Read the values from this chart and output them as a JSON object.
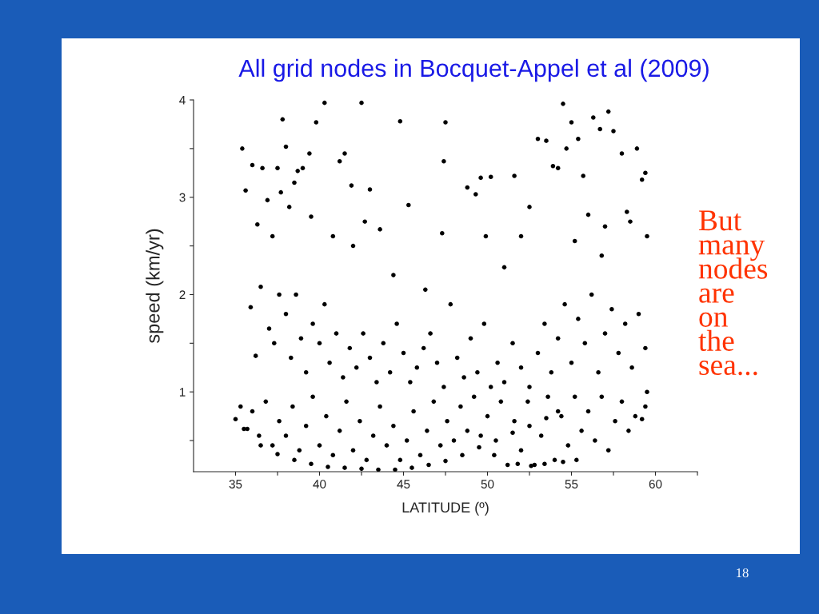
{
  "chart_data": {
    "type": "scatter",
    "title": "All grid nodes in Bocquet-Appel et al (2009)",
    "xlabel": "LATITUDE (º)",
    "ylabel": "speed (km/yr)",
    "annotations": [
      "But many nodes are on the sea...",
      "18"
    ],
    "xlim": [
      32.5,
      62.5
    ],
    "ylim": [
      0.18,
      4
    ],
    "xticks": [
      35,
      {
        "value": 37.5,
        "label": null
      },
      40,
      {
        "value": 42.5,
        "label": null
      },
      45,
      {
        "value": 47.5,
        "label": null
      },
      50,
      {
        "value": 52.5,
        "label": null
      },
      55,
      {
        "value": 57.5,
        "label": null
      },
      60,
      {
        "value": 62.5,
        "label": null
      }
    ],
    "yticks": [
      {
        "value": 0.5,
        "label": null
      },
      1,
      {
        "value": 1.5,
        "label": null
      },
      2,
      {
        "value": 2.5,
        "label": null
      },
      3,
      {
        "value": 3.5,
        "label": null
      },
      4
    ],
    "grid": false,
    "legend": false,
    "marker": "circle",
    "series": [
      {
        "color": "#000000",
        "x": [
          35.4,
          35.6,
          36.0,
          36.3,
          36.6,
          36.9,
          37.2,
          37.5,
          37.7,
          37.8,
          38.0,
          38.2,
          38.5,
          38.7,
          39.0,
          39.4,
          39.5,
          39.8,
          40.3,
          40.8,
          41.2,
          41.5,
          41.9,
          42.0,
          42.5,
          42.7,
          43.0,
          43.6,
          44.4,
          44.8,
          45.3,
          46.3,
          47.3,
          47.4,
          47.5,
          48.8,
          49.3,
          49.6,
          49.9,
          50.2,
          51.0,
          51.6,
          52.0,
          52.5,
          53.0,
          53.5,
          53.9,
          54.2,
          54.5,
          54.7,
          55.0,
          55.4,
          55.7,
          56.0,
          56.3,
          56.7,
          57.2,
          57.5,
          58.0,
          58.3,
          58.9,
          59.2,
          59.4,
          59.5,
          58.5,
          57.0,
          55.2,
          56.8,
          35.9,
          36.2,
          36.5,
          37.0,
          37.3,
          37.6,
          38.0,
          38.3,
          38.6,
          38.9,
          39.2,
          39.6,
          40.0,
          40.3,
          40.6,
          41.0,
          41.4,
          41.8,
          42.2,
          42.6,
          43.0,
          43.4,
          43.8,
          44.2,
          44.6,
          45.0,
          45.4,
          45.8,
          46.2,
          46.6,
          47.0,
          47.4,
          47.8,
          48.2,
          48.6,
          49.0,
          49.4,
          49.8,
          50.2,
          50.6,
          51.0,
          51.5,
          52.0,
          52.5,
          53.0,
          53.4,
          53.8,
          54.2,
          54.6,
          55.0,
          55.4,
          55.8,
          56.2,
          56.6,
          57.0,
          57.4,
          57.8,
          58.2,
          58.6,
          59.0,
          59.4,
          59.5,
          35.0,
          35.3,
          35.7,
          36.0,
          36.4,
          36.8,
          37.2,
          37.6,
          38.0,
          38.4,
          38.8,
          39.2,
          39.6,
          40.0,
          40.4,
          40.8,
          41.2,
          41.6,
          42.0,
          42.4,
          42.8,
          43.2,
          43.6,
          44.0,
          44.4,
          44.8,
          45.2,
          45.6,
          46.0,
          46.4,
          46.8,
          47.2,
          47.6,
          48.0,
          48.4,
          48.8,
          49.2,
          49.6,
          50.0,
          50.4,
          50.8,
          51.2,
          51.6,
          52.0,
          52.4,
          52.8,
          53.2,
          53.6,
          54.0,
          54.4,
          54.8,
          55.2,
          55.6,
          56.0,
          56.4,
          56.8,
          57.2,
          57.6,
          58.0,
          58.4,
          58.8,
          59.2,
          59.4,
          35.5,
          36.5,
          37.5,
          38.5,
          39.5,
          40.5,
          41.5,
          42.5,
          43.5,
          44.5,
          45.5,
          46.5,
          47.5,
          48.5,
          49.5,
          50.5,
          51.5,
          52.5,
          53.5,
          54.2,
          51.8,
          52.6,
          53.4,
          54.5,
          55.3
        ],
        "values": [
          3.5,
          3.07,
          3.33,
          2.72,
          3.3,
          2.97,
          2.6,
          3.3,
          3.05,
          3.8,
          3.52,
          2.9,
          3.15,
          3.27,
          3.3,
          3.45,
          2.8,
          3.77,
          3.97,
          2.6,
          3.37,
          3.45,
          3.12,
          2.5,
          3.97,
          2.75,
          3.08,
          2.67,
          2.2,
          3.78,
          2.92,
          2.05,
          2.63,
          3.37,
          3.77,
          3.1,
          3.03,
          3.2,
          2.6,
          3.21,
          2.28,
          3.22,
          2.6,
          2.9,
          3.6,
          3.58,
          3.32,
          3.3,
          3.96,
          3.5,
          3.77,
          3.6,
          3.22,
          2.82,
          3.82,
          3.7,
          3.88,
          3.68,
          3.45,
          2.85,
          3.5,
          3.18,
          3.25,
          2.6,
          2.75,
          2.7,
          2.55,
          2.4,
          1.87,
          1.37,
          2.08,
          1.65,
          1.5,
          2.0,
          1.8,
          1.35,
          2.0,
          1.55,
          1.2,
          1.7,
          1.5,
          1.9,
          1.3,
          1.6,
          1.15,
          1.45,
          1.25,
          1.6,
          1.35,
          1.1,
          1.5,
          1.2,
          1.7,
          1.4,
          1.1,
          1.25,
          1.45,
          1.6,
          1.3,
          1.05,
          1.9,
          1.35,
          1.15,
          1.55,
          1.2,
          1.7,
          1.05,
          1.3,
          1.1,
          1.5,
          1.25,
          1.05,
          1.4,
          1.7,
          1.2,
          1.55,
          1.9,
          1.3,
          1.75,
          1.5,
          2.0,
          1.2,
          1.6,
          1.85,
          1.4,
          1.7,
          1.25,
          1.8,
          1.45,
          1.0,
          0.72,
          0.85,
          0.62,
          0.8,
          0.55,
          0.9,
          0.45,
          0.7,
          0.55,
          0.85,
          0.4,
          0.65,
          0.95,
          0.45,
          0.75,
          0.35,
          0.6,
          0.9,
          0.4,
          0.7,
          0.3,
          0.55,
          0.85,
          0.45,
          0.65,
          0.3,
          0.5,
          0.8,
          0.35,
          0.6,
          0.9,
          0.45,
          0.7,
          0.5,
          0.85,
          0.6,
          0.95,
          0.55,
          0.75,
          0.35,
          0.9,
          0.25,
          0.7,
          0.4,
          0.9,
          0.25,
          0.55,
          0.95,
          0.3,
          0.75,
          0.45,
          0.95,
          0.6,
          0.8,
          0.5,
          0.95,
          0.4,
          0.7,
          0.9,
          0.6,
          0.75,
          0.72,
          0.85,
          0.62,
          0.45,
          0.36,
          0.3,
          0.26,
          0.23,
          0.22,
          0.21,
          0.2,
          0.2,
          0.22,
          0.25,
          0.29,
          0.35,
          0.43,
          0.5,
          0.58,
          0.65,
          0.73,
          0.8,
          0.26,
          0.24,
          0.26,
          0.28,
          0.3
        ]
      }
    ]
  }
}
